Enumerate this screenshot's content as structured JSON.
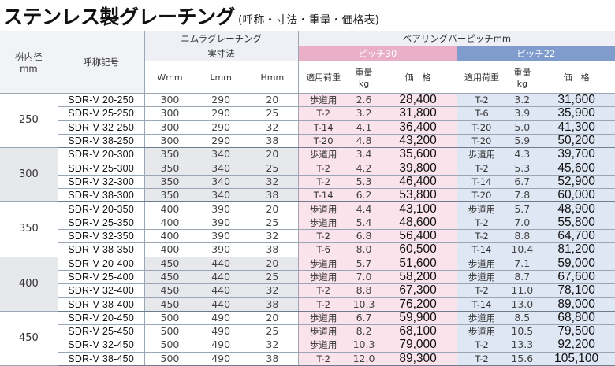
{
  "title": {
    "main": "ステンレス製グレーチング",
    "sub": "(呼称・寸法・重量・価格表)"
  },
  "header": {
    "inner_diameter": "桝内径",
    "inner_unit": "mm",
    "name_code": "呼称記号",
    "grating_group": "ニムラグレーチング",
    "actual_size": "実寸法",
    "w": "Wmm",
    "l": "Lmm",
    "h": "Hmm",
    "pitch_group": "ベアリングバーピッチmm",
    "pitch30": "ピッチ30",
    "pitch22": "ピッチ22",
    "load": "適用荷重",
    "weight": "重量",
    "weight_unit": "kg",
    "price": "価　格"
  },
  "groups": [
    {
      "size": "250",
      "rows": [
        {
          "code": "SDR-V  20-250",
          "w": "300",
          "l": "290",
          "h": "20",
          "p30_load": "歩道用",
          "p30_kg": "2.6",
          "p30_price": "28,400",
          "p22_load": "T-2",
          "p22_kg": "3.2",
          "p22_price": "31,600"
        },
        {
          "code": "SDR-V  25-250",
          "w": "300",
          "l": "290",
          "h": "25",
          "p30_load": "T-2",
          "p30_kg": "3.2",
          "p30_price": "31,800",
          "p22_load": "T-6",
          "p22_kg": "3.9",
          "p22_price": "35,900"
        },
        {
          "code": "SDR-V  32-250",
          "w": "300",
          "l": "290",
          "h": "32",
          "p30_load": "T-14",
          "p30_kg": "4.1",
          "p30_price": "36,400",
          "p22_load": "T-20",
          "p22_kg": "5.0",
          "p22_price": "41,300"
        },
        {
          "code": "SDR-V  38-250",
          "w": "300",
          "l": "290",
          "h": "38",
          "p30_load": "T-20",
          "p30_kg": "4.8",
          "p30_price": "43,200",
          "p22_load": "T-20",
          "p22_kg": "5.9",
          "p22_price": "50,200"
        }
      ]
    },
    {
      "size": "300",
      "rows": [
        {
          "code": "SDR-V  20-300",
          "w": "350",
          "l": "340",
          "h": "20",
          "p30_load": "歩道用",
          "p30_kg": "3.4",
          "p30_price": "35,600",
          "p22_load": "歩道用",
          "p22_kg": "4.3",
          "p22_price": "39,700"
        },
        {
          "code": "SDR-V  25-300",
          "w": "350",
          "l": "340",
          "h": "25",
          "p30_load": "T-2",
          "p30_kg": "4.2",
          "p30_price": "39,800",
          "p22_load": "T-2",
          "p22_kg": "5.3",
          "p22_price": "45,600"
        },
        {
          "code": "SDR-V  32-300",
          "w": "350",
          "l": "340",
          "h": "32",
          "p30_load": "T-2",
          "p30_kg": "5.3",
          "p30_price": "46,400",
          "p22_load": "T-14",
          "p22_kg": "6.7",
          "p22_price": "52,900"
        },
        {
          "code": "SDR-V  38-300",
          "w": "350",
          "l": "340",
          "h": "38",
          "p30_load": "T-14",
          "p30_kg": "6.2",
          "p30_price": "53,800",
          "p22_load": "T-20",
          "p22_kg": "7.8",
          "p22_price": "60,000"
        }
      ]
    },
    {
      "size": "350",
      "rows": [
        {
          "code": "SDR-V  20-350",
          "w": "400",
          "l": "390",
          "h": "20",
          "p30_load": "歩道用",
          "p30_kg": "4.4",
          "p30_price": "43,100",
          "p22_load": "歩道用",
          "p22_kg": "5.7",
          "p22_price": "48,900"
        },
        {
          "code": "SDR-V  25-350",
          "w": "400",
          "l": "390",
          "h": "25",
          "p30_load": "歩道用",
          "p30_kg": "5.4",
          "p30_price": "48,600",
          "p22_load": "T-2",
          "p22_kg": "7.0",
          "p22_price": "55,800"
        },
        {
          "code": "SDR-V  32-350",
          "w": "400",
          "l": "390",
          "h": "32",
          "p30_load": "T-2",
          "p30_kg": "6.8",
          "p30_price": "56,400",
          "p22_load": "T-2",
          "p22_kg": "8.8",
          "p22_price": "64,700"
        },
        {
          "code": "SDR-V  38-350",
          "w": "400",
          "l": "390",
          "h": "38",
          "p30_load": "T-6",
          "p30_kg": "8.0",
          "p30_price": "60,500",
          "p22_load": "T-14",
          "p22_kg": "10.4",
          "p22_price": "81,200"
        }
      ]
    },
    {
      "size": "400",
      "rows": [
        {
          "code": "SDR-V  20-400",
          "w": "450",
          "l": "440",
          "h": "20",
          "p30_load": "歩道用",
          "p30_kg": "5.7",
          "p30_price": "51,600",
          "p22_load": "歩道用",
          "p22_kg": "7.1",
          "p22_price": "59,000"
        },
        {
          "code": "SDR-V  25-400",
          "w": "450",
          "l": "440",
          "h": "25",
          "p30_load": "歩道用",
          "p30_kg": "7.0",
          "p30_price": "58,200",
          "p22_load": "歩道用",
          "p22_kg": "8.7",
          "p22_price": "67,600"
        },
        {
          "code": "SDR-V  32-400",
          "w": "450",
          "l": "440",
          "h": "32",
          "p30_load": "T-2",
          "p30_kg": "8.8",
          "p30_price": "67,300",
          "p22_load": "T-2",
          "p22_kg": "11.0",
          "p22_price": "78,100"
        },
        {
          "code": "SDR-V  38-400",
          "w": "450",
          "l": "440",
          "h": "38",
          "p30_load": "T-2",
          "p30_kg": "10.3",
          "p30_price": "76,200",
          "p22_load": "T-14",
          "p22_kg": "13.0",
          "p22_price": "89,000"
        }
      ]
    },
    {
      "size": "450",
      "rows": [
        {
          "code": "SDR-V  20-450",
          "w": "500",
          "l": "490",
          "h": "20",
          "p30_load": "歩道用",
          "p30_kg": "6.7",
          "p30_price": "59,900",
          "p22_load": "歩道用",
          "p22_kg": "8.5",
          "p22_price": "68,800"
        },
        {
          "code": "SDR-V  25-450",
          "w": "500",
          "l": "490",
          "h": "25",
          "p30_load": "歩道用",
          "p30_kg": "8.2",
          "p30_price": "68,100",
          "p22_load": "歩道用",
          "p22_kg": "10.5",
          "p22_price": "79,500"
        },
        {
          "code": "SDR-V  32-450",
          "w": "500",
          "l": "490",
          "h": "32",
          "p30_load": "歩道用",
          "p30_kg": "10.3",
          "p30_price": "79,000",
          "p22_load": "T-2",
          "p22_kg": "13.3",
          "p22_price": "92,200"
        },
        {
          "code": "SDR-V  38-450",
          "w": "500",
          "l": "490",
          "h": "38",
          "p30_load": "T-2",
          "p30_kg": "12.0",
          "p30_price": "89,300",
          "p22_load": "T-2",
          "p22_kg": "15.6",
          "p22_price": "105,100"
        }
      ]
    }
  ],
  "colors": {
    "pitch30_header": "#e9afc7",
    "pitch30_cell": "#fbe3ec",
    "pitch22_header": "#7f9ccc",
    "pitch22_cell": "#dfe7f4"
  }
}
